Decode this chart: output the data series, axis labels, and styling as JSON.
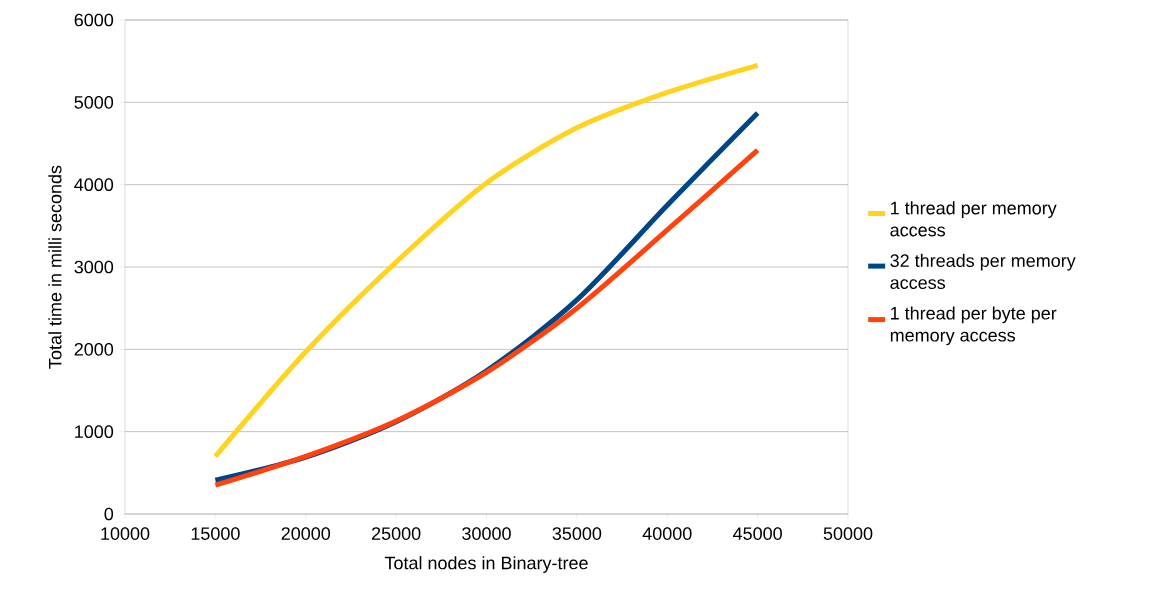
{
  "chart_data": {
    "type": "line",
    "xlabel": "Total nodes in Binary-tree",
    "ylabel": "Total time in milli seconds",
    "x": [
      15000,
      20000,
      25000,
      30000,
      35000,
      40000,
      45000
    ],
    "series": [
      {
        "name": "1 thread per memory access",
        "color": "#ffd320",
        "values": [
          700,
          1970,
          3060,
          4020,
          4690,
          5120,
          5450
        ]
      },
      {
        "name": "32 threads per memory access",
        "color": "#004586",
        "values": [
          410,
          690,
          1120,
          1740,
          2600,
          3750,
          4870
        ]
      },
      {
        "name": "1 thread per byte per memory access",
        "color": "#ff420e",
        "values": [
          350,
          700,
          1130,
          1720,
          2500,
          3450,
          4420
        ]
      }
    ],
    "xlim": [
      10000,
      50000
    ],
    "xticks": [
      10000,
      15000,
      20000,
      25000,
      30000,
      35000,
      40000,
      45000,
      50000
    ],
    "ylim": [
      0,
      6000
    ],
    "yticks": [
      0,
      1000,
      2000,
      3000,
      4000,
      5000,
      6000
    ],
    "grid": "y",
    "legend": "right",
    "marker": "none",
    "line_style": "solid"
  }
}
